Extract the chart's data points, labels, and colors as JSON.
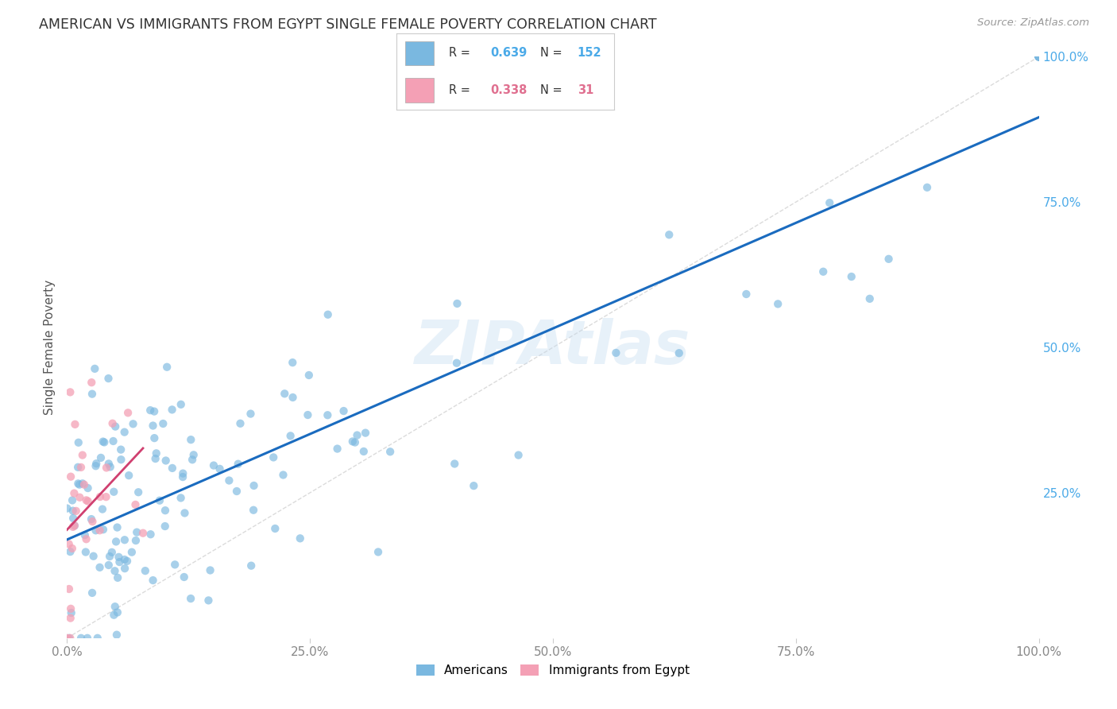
{
  "title": "AMERICAN VS IMMIGRANTS FROM EGYPT SINGLE FEMALE POVERTY CORRELATION CHART",
  "source": "Source: ZipAtlas.com",
  "ylabel": "Single Female Poverty",
  "watermark": "ZIPAtlas",
  "americans": {
    "R": 0.639,
    "N": 152,
    "color": "#7ab8e0",
    "line_color": "#1a6bbf",
    "marker_size": 55
  },
  "egyptians": {
    "R": 0.338,
    "N": 31,
    "color": "#f4a0b5",
    "line_color": "#d04070",
    "marker_size": 55
  },
  "background_color": "#ffffff",
  "grid_color": "#dddddd",
  "title_color": "#333333",
  "axis_label_color": "#555555",
  "tick_color": "#888888",
  "right_tick_color": "#4baae8",
  "legend_label_blue": "Americans",
  "legend_label_pink": "Immigrants from Egypt"
}
